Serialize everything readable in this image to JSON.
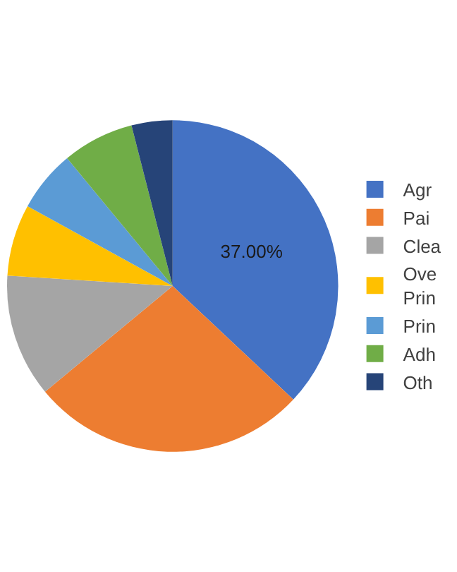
{
  "chart_data": {
    "type": "pie",
    "categories": [
      "Agr",
      "Pai",
      "Clea",
      "Ove\nPrin",
      "Prin",
      "Adh",
      "Oth"
    ],
    "values": [
      37,
      27,
      12,
      7,
      6,
      7,
      4
    ],
    "colors": [
      "#4472c4",
      "#ed7d31",
      "#a5a5a5",
      "#ffc000",
      "#5b9bd5",
      "#70ad47",
      "#264478"
    ],
    "value_labels": [
      "37.00%",
      null,
      null,
      null,
      null,
      null,
      null
    ],
    "legend": "right"
  }
}
